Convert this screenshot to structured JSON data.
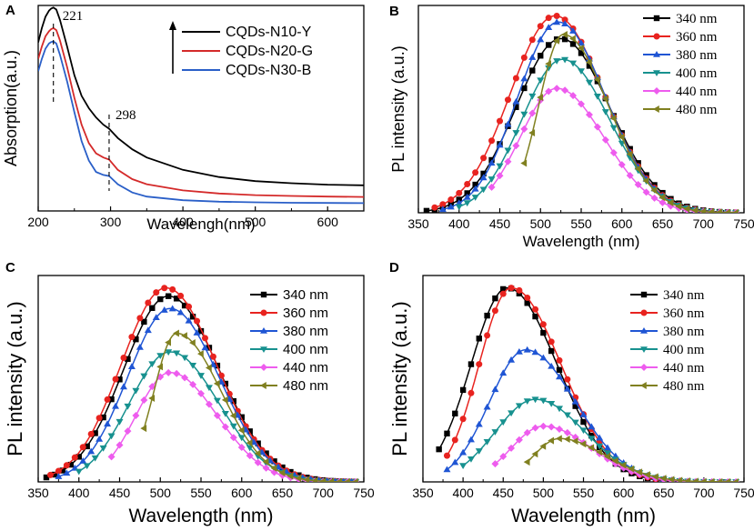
{
  "chart_data": [
    {
      "panel": "A",
      "type": "line",
      "xlabel": "Wavelengh(nm)",
      "ylabel": "Absorption(a.u.)",
      "xlim": [
        200,
        650
      ],
      "ylim": [
        0,
        1.0
      ],
      "xticks": [
        200,
        300,
        400,
        500,
        600
      ],
      "show_yticks": false,
      "marker": "none",
      "legend_style": "sans",
      "legend_position": "top-right",
      "legend_arrow": true,
      "annotations": [
        {
          "text": "221",
          "x": 221
        },
        {
          "text": "298",
          "x": 298
        }
      ],
      "series": [
        {
          "name": "CQDs-N10-Y",
          "color": "#000000",
          "x": [
            200,
            205,
            210,
            215,
            218,
            221,
            225,
            230,
            240,
            250,
            260,
            270,
            280,
            290,
            298,
            310,
            330,
            350,
            400,
            450,
            500,
            550,
            600,
            650
          ],
          "y": [
            0.82,
            0.89,
            0.945,
            0.975,
            0.985,
            0.99,
            0.98,
            0.93,
            0.8,
            0.66,
            0.56,
            0.5,
            0.455,
            0.42,
            0.4,
            0.355,
            0.3,
            0.26,
            0.2,
            0.165,
            0.145,
            0.135,
            0.128,
            0.125
          ]
        },
        {
          "name": "CQDs-N20-G",
          "color": "#d42a2a",
          "x": [
            200,
            205,
            210,
            215,
            218,
            221,
            225,
            230,
            240,
            250,
            260,
            270,
            280,
            290,
            298,
            310,
            330,
            350,
            400,
            450,
            500,
            550,
            600,
            650
          ],
          "y": [
            0.74,
            0.8,
            0.85,
            0.875,
            0.885,
            0.89,
            0.88,
            0.83,
            0.7,
            0.55,
            0.42,
            0.33,
            0.28,
            0.26,
            0.25,
            0.2,
            0.155,
            0.13,
            0.1,
            0.085,
            0.077,
            0.073,
            0.07,
            0.068
          ]
        },
        {
          "name": "CQDs-N30-B",
          "color": "#2a5fc8",
          "x": [
            200,
            205,
            210,
            215,
            218,
            221,
            225,
            230,
            240,
            250,
            260,
            270,
            280,
            290,
            298,
            310,
            330,
            350,
            400,
            450,
            500,
            550,
            600,
            650
          ],
          "y": [
            0.68,
            0.74,
            0.79,
            0.815,
            0.822,
            0.825,
            0.815,
            0.76,
            0.63,
            0.48,
            0.34,
            0.245,
            0.19,
            0.175,
            0.17,
            0.13,
            0.09,
            0.07,
            0.052,
            0.045,
            0.042,
            0.04,
            0.039,
            0.038
          ]
        }
      ]
    },
    {
      "panel": "B",
      "type": "line",
      "xlabel": "Wavelength (nm)",
      "ylabel": "PL intensity (a.u.)",
      "xlim": [
        350,
        750
      ],
      "ylim": [
        0,
        1.0
      ],
      "xticks": [
        350,
        400,
        450,
        500,
        550,
        600,
        650,
        700,
        750
      ],
      "show_yticks": false,
      "marker": "symbols",
      "legend_style": "serif",
      "legend_position": "top-right",
      "series": [
        {
          "name": "340 nm",
          "color": "#000000",
          "marker": "square",
          "peak_x": 525,
          "amp": 0.84,
          "sig_left": 55,
          "sig_right": 60,
          "x_start": 360,
          "x_end": 740
        },
        {
          "name": "360 nm",
          "color": "#e8231f",
          "marker": "circle",
          "peak_x": 518,
          "amp": 0.95,
          "sig_left": 55,
          "sig_right": 60,
          "x_start": 370,
          "x_end": 740
        },
        {
          "name": "380 nm",
          "color": "#1f55d4",
          "marker": "triangle-up",
          "peak_x": 522,
          "amp": 0.92,
          "sig_left": 50,
          "sig_right": 58,
          "x_start": 380,
          "x_end": 740
        },
        {
          "name": "400 nm",
          "color": "#17918f",
          "marker": "triangle-down",
          "peak_x": 527,
          "amp": 0.74,
          "sig_left": 50,
          "sig_right": 58,
          "x_start": 400,
          "x_end": 740
        },
        {
          "name": "440 nm",
          "color": "#ee5cee",
          "marker": "diamond",
          "peak_x": 520,
          "amp": 0.6,
          "sig_left": 45,
          "sig_right": 58,
          "x_start": 440,
          "x_end": 740
        },
        {
          "name": "480 nm",
          "color": "#808020",
          "marker": "triangle-left",
          "peak_x": 528,
          "amp": 0.86,
          "sig_left": 30,
          "sig_right": 55,
          "x_start": 480,
          "x_end": 740
        }
      ]
    },
    {
      "panel": "C",
      "type": "line",
      "xlabel": "Wavelength (nm)",
      "ylabel": "PL intensity (a.u.)",
      "xlim": [
        350,
        750
      ],
      "ylim": [
        0,
        1.0
      ],
      "xticks": [
        350,
        400,
        450,
        500,
        550,
        600,
        650,
        700,
        750
      ],
      "show_yticks": false,
      "marker": "symbols",
      "legend_style": "sans",
      "legend_position": "top-right",
      "series": [
        {
          "name": "340 nm",
          "color": "#000000",
          "marker": "square",
          "peak_x": 510,
          "amp": 0.9,
          "sig_left": 55,
          "sig_right": 62,
          "x_start": 360,
          "x_end": 740
        },
        {
          "name": "360 nm",
          "color": "#e8231f",
          "marker": "circle",
          "peak_x": 507,
          "amp": 0.94,
          "sig_left": 55,
          "sig_right": 62,
          "x_start": 365,
          "x_end": 740
        },
        {
          "name": "380 nm",
          "color": "#1f55d4",
          "marker": "triangle-up",
          "peak_x": 512,
          "amp": 0.84,
          "sig_left": 52,
          "sig_right": 60,
          "x_start": 375,
          "x_end": 740
        },
        {
          "name": "400 nm",
          "color": "#17918f",
          "marker": "triangle-down",
          "peak_x": 512,
          "amp": 0.63,
          "sig_left": 50,
          "sig_right": 60,
          "x_start": 400,
          "x_end": 740
        },
        {
          "name": "440 nm",
          "color": "#ee5cee",
          "marker": "diamond",
          "peak_x": 512,
          "amp": 0.53,
          "sig_left": 42,
          "sig_right": 58,
          "x_start": 440,
          "x_end": 740
        },
        {
          "name": "480 nm",
          "color": "#808020",
          "marker": "triangle-left",
          "peak_x": 520,
          "amp": 0.72,
          "sig_left": 28,
          "sig_right": 55,
          "x_start": 480,
          "x_end": 740
        }
      ]
    },
    {
      "panel": "D",
      "type": "line",
      "xlabel": "Wavelength (nm)",
      "ylabel": "PL intensity (a.u.)",
      "xlim": [
        350,
        750
      ],
      "ylim": [
        0,
        1.0
      ],
      "xticks": [
        350,
        400,
        450,
        500,
        550,
        600,
        650,
        700,
        750
      ],
      "show_yticks": false,
      "marker": "symbols",
      "legend_style": "serif",
      "legend_position": "top-right",
      "series": [
        {
          "name": "340 nm",
          "color": "#000000",
          "marker": "square",
          "peak_x": 455,
          "amp": 0.94,
          "sig_left": 45,
          "sig_right": 62,
          "x_start": 370,
          "x_end": 660
        },
        {
          "name": "360 nm",
          "color": "#e8231f",
          "marker": "circle",
          "peak_x": 460,
          "amp": 0.94,
          "sig_left": 40,
          "sig_right": 62,
          "x_start": 380,
          "x_end": 660
        },
        {
          "name": "380 nm",
          "color": "#1f55d4",
          "marker": "triangle-up",
          "peak_x": 478,
          "amp": 0.64,
          "sig_left": 45,
          "sig_right": 62,
          "x_start": 380,
          "x_end": 740
        },
        {
          "name": "400 nm",
          "color": "#17918f",
          "marker": "triangle-down",
          "peak_x": 490,
          "amp": 0.4,
          "sig_left": 50,
          "sig_right": 62,
          "x_start": 400,
          "x_end": 740
        },
        {
          "name": "440 nm",
          "color": "#ee5cee",
          "marker": "diamond",
          "peak_x": 500,
          "amp": 0.27,
          "sig_left": 40,
          "sig_right": 60,
          "x_start": 440,
          "x_end": 740
        },
        {
          "name": "480 nm",
          "color": "#808020",
          "marker": "triangle-left",
          "peak_x": 520,
          "amp": 0.21,
          "sig_left": 32,
          "sig_right": 58,
          "x_start": 480,
          "x_end": 740
        }
      ]
    }
  ]
}
